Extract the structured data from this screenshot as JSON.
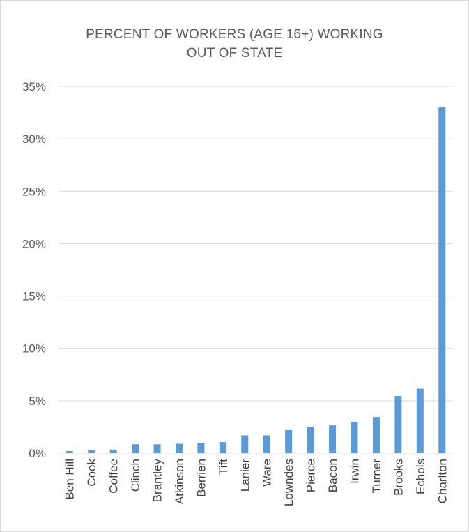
{
  "chart_data": {
    "type": "bar",
    "title_lines": [
      "PERCENT OF WORKERS (AGE 16+) WORKING",
      "OUT OF STATE"
    ],
    "categories": [
      "Ben Hill",
      "Cook",
      "Coffee",
      "Clinch",
      "Brantley",
      "Atkinson",
      "Berrien",
      "Tift",
      "Lanier",
      "Ware",
      "Lowndes",
      "Pierce",
      "Bacon",
      "Irwin",
      "Turner",
      "Brooks",
      "Echols",
      "Charlton"
    ],
    "values": [
      0.2,
      0.3,
      0.35,
      0.85,
      0.85,
      0.9,
      1.0,
      1.05,
      1.7,
      1.7,
      2.25,
      2.5,
      2.65,
      3.0,
      3.45,
      5.45,
      6.15,
      33.0
    ],
    "yticks": [
      "0%",
      "5%",
      "10%",
      "15%",
      "20%",
      "25%",
      "30%",
      "35%"
    ],
    "ylim": [
      0,
      35
    ],
    "grid": true,
    "bar_color": "#5b9bd5",
    "grid_color": "#d9d9d9"
  }
}
